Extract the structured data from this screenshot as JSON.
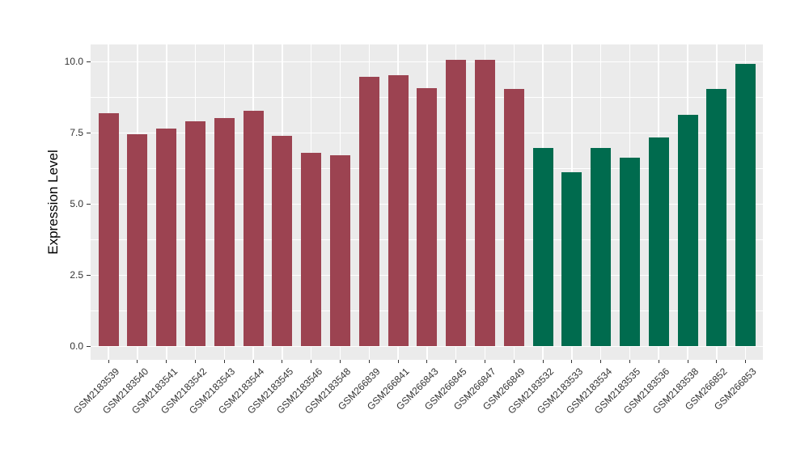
{
  "figure": {
    "background_color": "#FFFFFF"
  },
  "chart_data": {
    "type": "bar",
    "title": "",
    "xlabel": "",
    "ylabel": "Expression Level",
    "ylim": [
      -0.53,
      10.6
    ],
    "grid": "white major+minor horizontal lines, white vertical major lines at category centers",
    "legend_position": "none",
    "panel_background": "#EBEBEB",
    "gridline_color": "#FFFFFF",
    "axis_text_color": "#333333",
    "axis_title_color": "#000000",
    "yticks": [
      {
        "value": 0.0,
        "label": "0.0"
      },
      {
        "value": 2.5,
        "label": "2.5"
      },
      {
        "value": 5.0,
        "label": "5.0"
      },
      {
        "value": 7.5,
        "label": "7.5"
      },
      {
        "value": 10.0,
        "label": "10.0"
      }
    ],
    "yminor": [
      1.25,
      3.75,
      6.25,
      8.75
    ],
    "group_colors": {
      "group1": "#9C4351",
      "group2": "#006B4E"
    },
    "bars": [
      {
        "label": "GSM2183539",
        "value": 8.2,
        "group": "group1"
      },
      {
        "label": "GSM2183540",
        "value": 7.46,
        "group": "group1"
      },
      {
        "label": "GSM2183541",
        "value": 7.65,
        "group": "group1"
      },
      {
        "label": "GSM2183542",
        "value": 7.9,
        "group": "group1"
      },
      {
        "label": "GSM2183543",
        "value": 8.01,
        "group": "group1"
      },
      {
        "label": "GSM2183544",
        "value": 8.27,
        "group": "group1"
      },
      {
        "label": "GSM2183545",
        "value": 7.4,
        "group": "group1"
      },
      {
        "label": "GSM2183546",
        "value": 6.79,
        "group": "group1"
      },
      {
        "label": "GSM2183548",
        "value": 6.72,
        "group": "group1"
      },
      {
        "label": "GSM266839",
        "value": 9.46,
        "group": "group1"
      },
      {
        "label": "GSM266841",
        "value": 9.52,
        "group": "group1"
      },
      {
        "label": "GSM266843",
        "value": 9.06,
        "group": "group1"
      },
      {
        "label": "GSM266845",
        "value": 10.06,
        "group": "group1"
      },
      {
        "label": "GSM266847",
        "value": 10.06,
        "group": "group1"
      },
      {
        "label": "GSM266849",
        "value": 9.03,
        "group": "group1"
      },
      {
        "label": "GSM2183532",
        "value": 6.97,
        "group": "group2"
      },
      {
        "label": "GSM2183533",
        "value": 6.12,
        "group": "group2"
      },
      {
        "label": "GSM2183534",
        "value": 6.97,
        "group": "group2"
      },
      {
        "label": "GSM2183535",
        "value": 6.62,
        "group": "group2"
      },
      {
        "label": "GSM2183536",
        "value": 7.33,
        "group": "group2"
      },
      {
        "label": "GSM2183538",
        "value": 8.12,
        "group": "group2"
      },
      {
        "label": "GSM266852",
        "value": 9.05,
        "group": "group2"
      },
      {
        "label": "GSM266853",
        "value": 9.92,
        "group": "group2"
      }
    ]
  }
}
